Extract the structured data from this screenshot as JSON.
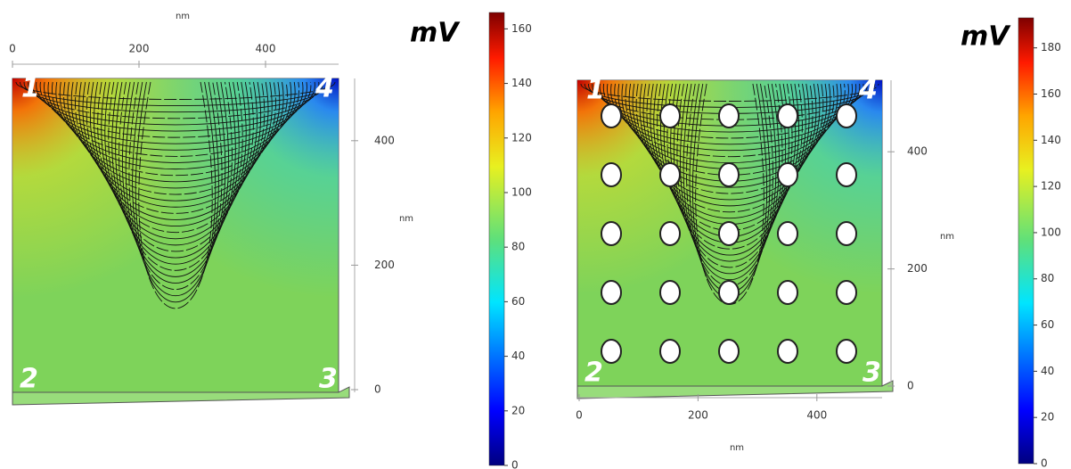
{
  "chart_data": [
    {
      "type": "field",
      "x_label": "nm",
      "y_label": "nm",
      "xlim": [
        0,
        515
      ],
      "xticks": [
        0,
        200,
        400
      ],
      "ylim": [
        0,
        500
      ],
      "yticks": [
        0,
        200,
        400
      ],
      "colorbar": {
        "title": "mV",
        "lim": [
          0,
          166
        ],
        "ticks": [
          0,
          20,
          40,
          60,
          80,
          100,
          120,
          140,
          160
        ]
      },
      "point_labels": [
        "1",
        "2",
        "3",
        "4"
      ]
    },
    {
      "type": "field",
      "x_label": "nm",
      "y_label": "nm",
      "xlim": [
        0,
        510
      ],
      "xticks": [
        0,
        200,
        400
      ],
      "ylim": [
        0,
        520
      ],
      "yticks": [
        0,
        200,
        400
      ],
      "colorbar": {
        "title": "mV",
        "lim": [
          0,
          193
        ],
        "ticks": [
          0,
          20,
          40,
          60,
          80,
          100,
          120,
          140,
          160,
          180
        ]
      },
      "point_labels": [
        "1",
        "2",
        "3",
        "4"
      ]
    }
  ]
}
